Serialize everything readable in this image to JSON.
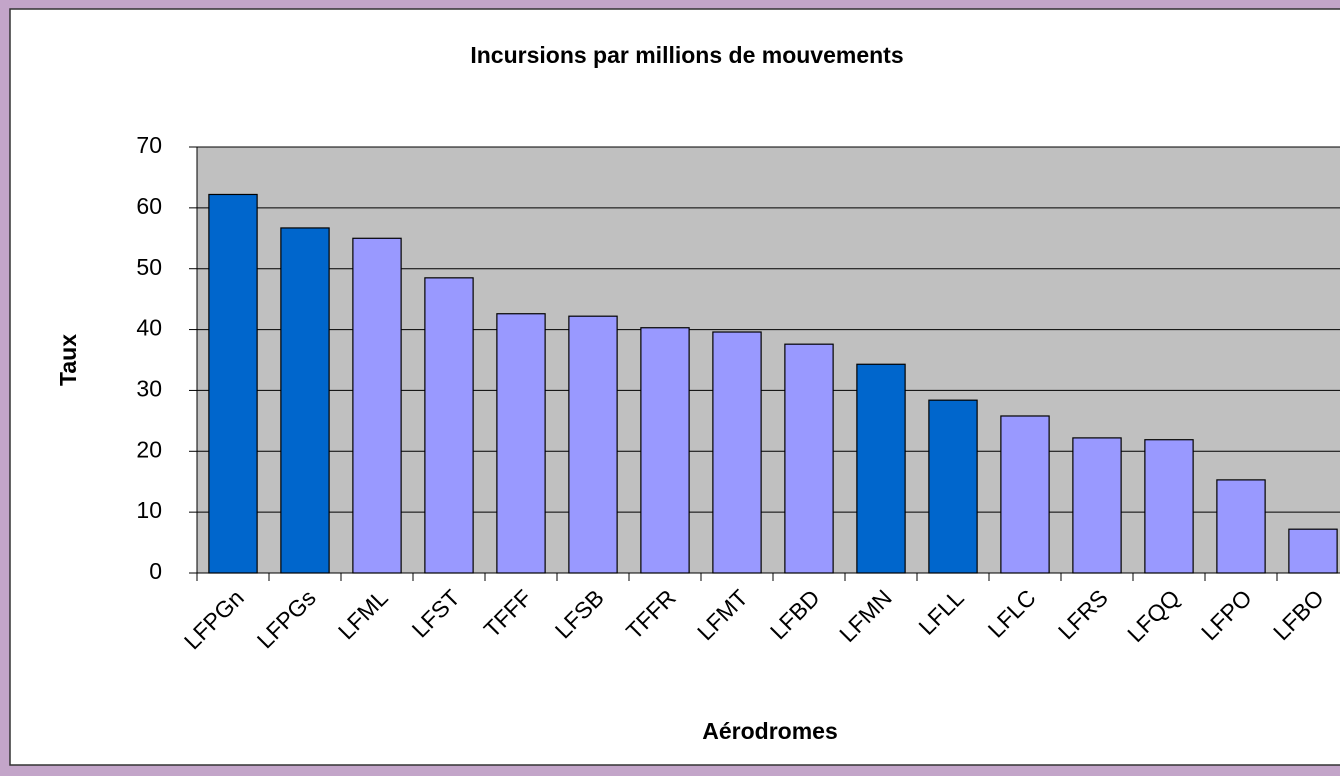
{
  "chart_data": {
    "type": "bar",
    "title": "Incursions par millions de mouvements",
    "x_label": "Aérodromes",
    "y_label": "Taux",
    "categories": [
      "LFPGn",
      "LFPGs",
      "LFML",
      "LFST",
      "TFFF",
      "LFSB",
      "TFFR",
      "LFMT",
      "LFBD",
      "LFMN",
      "LFLL",
      "LFLC",
      "LFRS",
      "LFQQ",
      "LFPO",
      "LFBO"
    ],
    "values": [
      62.2,
      56.7,
      55,
      48.5,
      42.6,
      42.2,
      40.3,
      39.6,
      37.6,
      34.3,
      28.4,
      25.8,
      22.2,
      21.9,
      15.3,
      7.2
    ],
    "colors": [
      "#0066cc",
      "#0066cc",
      "#9999ff",
      "#9999ff",
      "#9999ff",
      "#9999ff",
      "#9999ff",
      "#9999ff",
      "#9999ff",
      "#0066cc",
      "#0066cc",
      "#9999ff",
      "#9999ff",
      "#9999ff",
      "#9999ff",
      "#9999ff"
    ],
    "ylim": [
      0,
      70
    ],
    "yticks": [
      0,
      10,
      20,
      30,
      40,
      50,
      60,
      70
    ],
    "grid": true
  }
}
